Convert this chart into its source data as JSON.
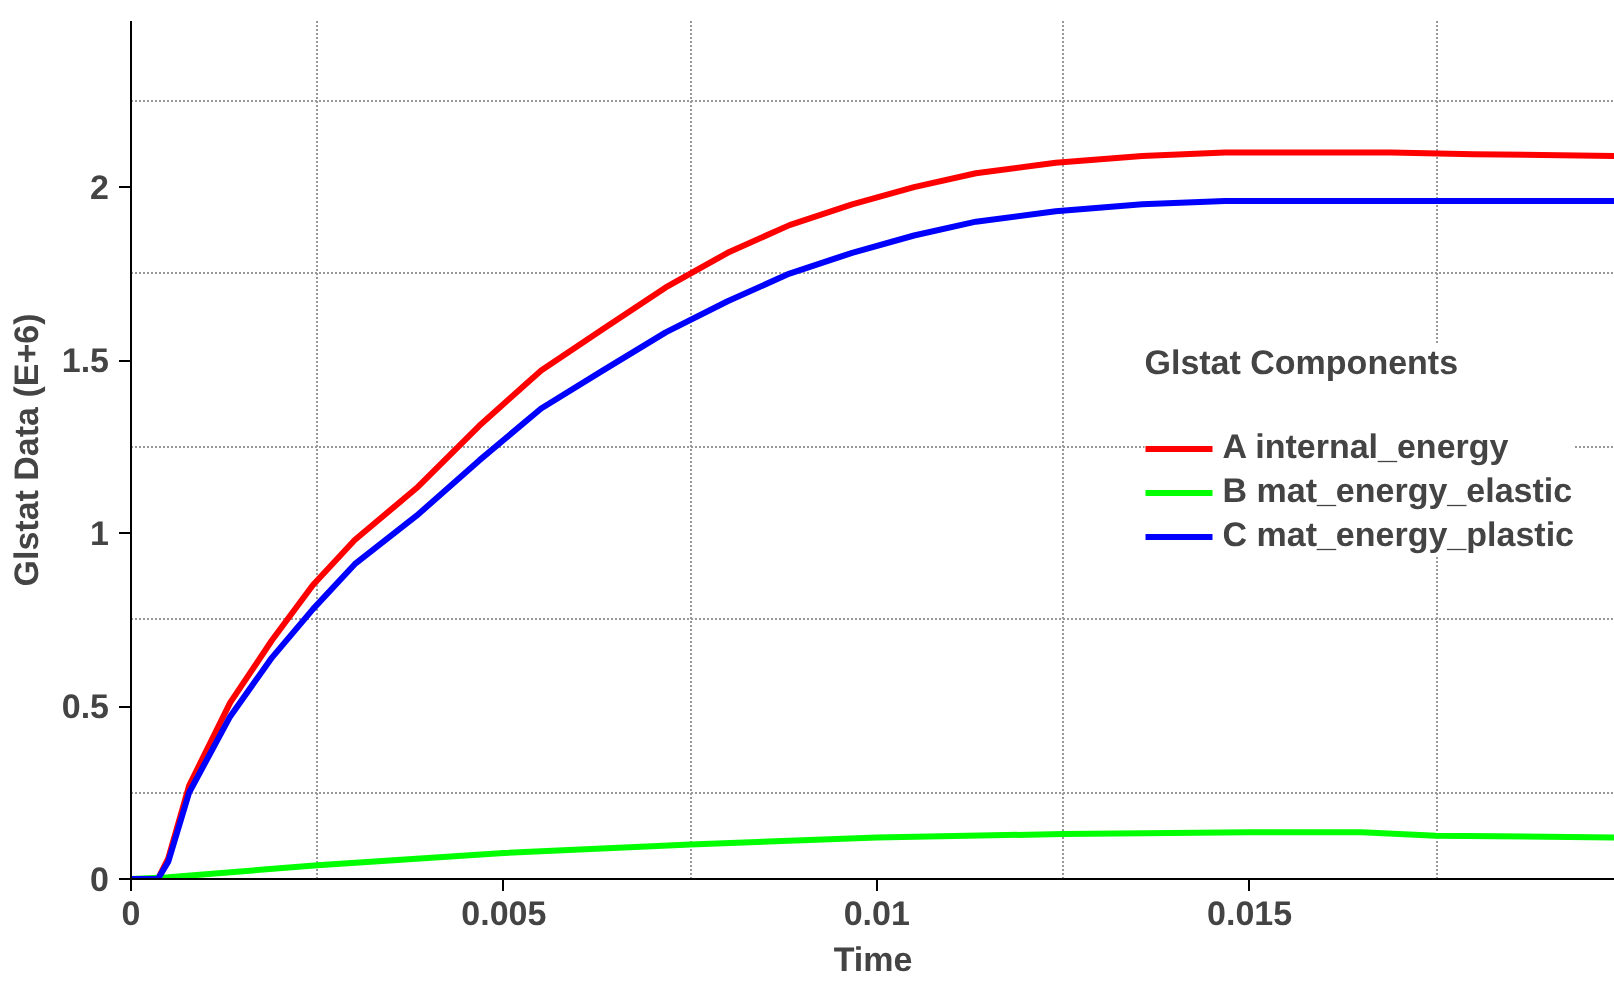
{
  "chart_data": {
    "type": "line",
    "xlabel": "Time",
    "ylabel": "Glstat Data (E+6)",
    "legend_title": "Glstat Components",
    "legend": "right",
    "xlim": [
      0,
      0.0199
    ],
    "ylim": [
      0,
      2.48
    ],
    "xticks": [
      0,
      {
        "value": 0.0025,
        "label": null
      },
      {
        "value": 0.005,
        "label": "0.005"
      },
      {
        "value": 0.0075,
        "label": null
      },
      {
        "value": 0.01,
        "label": "0.01"
      },
      {
        "value": 0.0125,
        "label": null
      },
      {
        "value": 0.015,
        "label": "0.015"
      },
      {
        "value": 0.0175,
        "label": null
      }
    ],
    "yticks": [
      0,
      {
        "value": 0.25,
        "label": null
      },
      {
        "value": 0.5,
        "label": "0.5"
      },
      {
        "value": 0.75,
        "label": null
      },
      1,
      {
        "value": 1.25,
        "label": null
      },
      {
        "value": 1.5,
        "label": "1.5"
      },
      {
        "value": 1.75,
        "label": null
      },
      2,
      {
        "value": 2.25,
        "label": null
      }
    ],
    "grid": true,
    "line_style": "solid",
    "series": [
      {
        "name": "A internal_energy",
        "color": "#ff0000",
        "x": [
          0,
          0.00036,
          0.0005,
          0.00078,
          0.00133,
          0.00189,
          0.00244,
          0.003,
          0.00383,
          0.00467,
          0.0055,
          0.00633,
          0.00717,
          0.008,
          0.00883,
          0.00967,
          0.0105,
          0.01133,
          0.0124,
          0.01356,
          0.01467,
          0.0158,
          0.0169,
          0.018,
          0.0199
        ],
        "values": [
          0,
          0,
          0.06,
          0.27,
          0.51,
          0.69,
          0.85,
          0.98,
          1.13,
          1.31,
          1.47,
          1.59,
          1.71,
          1.81,
          1.89,
          1.95,
          2.0,
          2.04,
          2.07,
          2.09,
          2.1,
          2.1,
          2.1,
          2.095,
          2.09
        ]
      },
      {
        "name": "B mat_energy_elastic",
        "color": "#00ff00",
        "x": [
          0,
          0.0005,
          0.0025,
          0.005,
          0.0075,
          0.01,
          0.0125,
          0.015,
          0.0165,
          0.0175,
          0.0199
        ],
        "values": [
          0,
          0.005,
          0.04,
          0.075,
          0.1,
          0.12,
          0.13,
          0.135,
          0.135,
          0.125,
          0.12
        ]
      },
      {
        "name": "C mat_energy_plastic",
        "color": "#0000ff",
        "x": [
          0,
          0.00036,
          0.0005,
          0.00078,
          0.00133,
          0.00189,
          0.00244,
          0.003,
          0.00383,
          0.00467,
          0.0055,
          0.00633,
          0.00717,
          0.008,
          0.00883,
          0.00967,
          0.0105,
          0.01133,
          0.0124,
          0.01356,
          0.01467,
          0.0158,
          0.0199
        ],
        "values": [
          0,
          0,
          0.05,
          0.25,
          0.47,
          0.64,
          0.78,
          0.91,
          1.05,
          1.21,
          1.36,
          1.47,
          1.58,
          1.67,
          1.75,
          1.81,
          1.86,
          1.9,
          1.93,
          1.95,
          1.96,
          1.96,
          1.96
        ]
      }
    ]
  }
}
